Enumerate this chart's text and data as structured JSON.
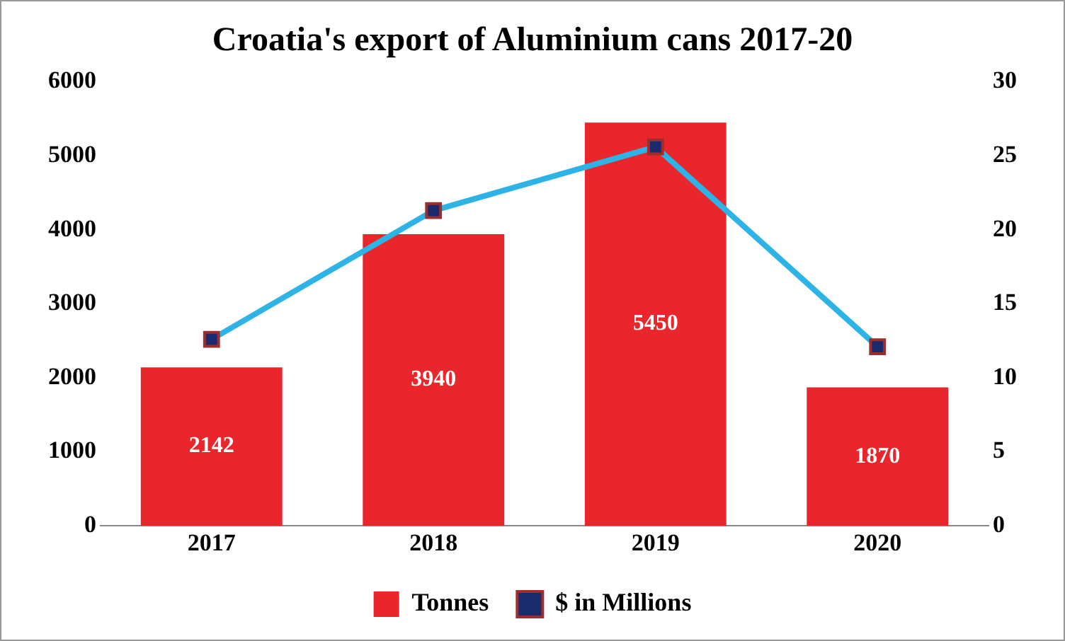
{
  "chart_data": {
    "type": "bar",
    "title": "Croatia's export of Aluminium cans 2017-20",
    "categories": [
      "2017",
      "2018",
      "2019",
      "2020"
    ],
    "series": [
      {
        "name": "Tonnes",
        "color": "#e8262b",
        "values": [
          2142,
          3940,
          5450,
          1870
        ],
        "value_labels": [
          "2142",
          "3940",
          "5450",
          "1870"
        ]
      },
      {
        "name": "$ in Millions",
        "type": "line",
        "axis": "y2",
        "color": "#2eb3e6",
        "values": [
          12.6,
          21.3,
          25.6,
          12.1
        ]
      }
    ],
    "ylim": [
      0,
      6000
    ],
    "yticks": [
      0,
      1000,
      2000,
      3000,
      4000,
      5000,
      6000
    ],
    "y2lim": [
      0,
      30
    ],
    "y2ticks": [
      0,
      5,
      10,
      15,
      20,
      25,
      30
    ],
    "grid": false,
    "legend": "bottom",
    "marker": "square",
    "line_style": "solid"
  }
}
